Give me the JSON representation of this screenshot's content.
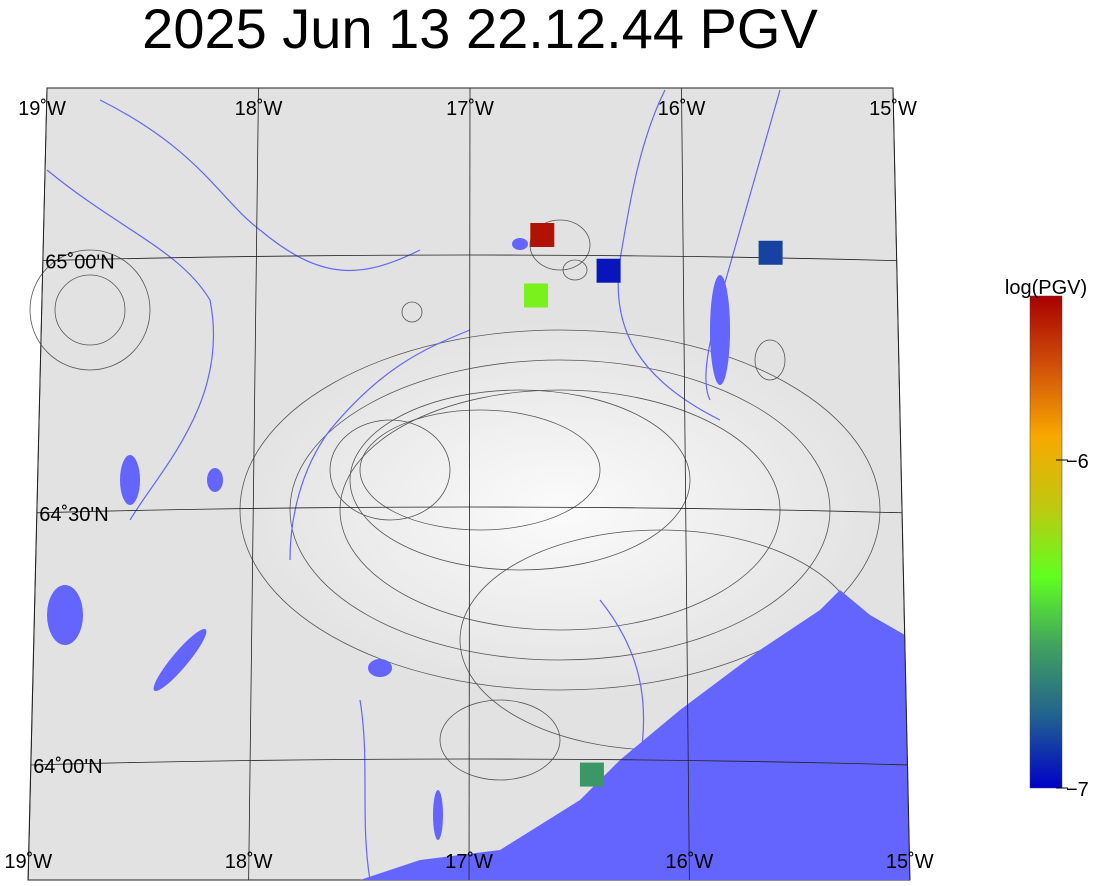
{
  "title": "2025 Jun 13 22.12.44 PGV",
  "map": {
    "lon_range": [
      -19,
      -15
    ],
    "lat_range": [
      63.85,
      65.35
    ],
    "lon_labels": [
      {
        "lon": -19,
        "text": "19˚W"
      },
      {
        "lon": -18,
        "text": "18˚W"
      },
      {
        "lon": -17,
        "text": "17˚W"
      },
      {
        "lon": -16,
        "text": "16˚W"
      },
      {
        "lon": -15,
        "text": "15˚W"
      }
    ],
    "lat_labels": [
      {
        "lat": 65.0,
        "text": "65˚00'N"
      },
      {
        "lat": 64.5,
        "text": "64˚30'N"
      },
      {
        "lat": 64.0,
        "text": "64˚00'N"
      }
    ],
    "colors": {
      "land": "#e4e4e4",
      "water": "#6464ff",
      "contour": "#444444",
      "grid": "#222222"
    }
  },
  "stations": [
    {
      "lon": -16.66,
      "lat": 65.04,
      "log_pgv": -5.55
    },
    {
      "lon": -16.35,
      "lat": 64.97,
      "log_pgv": -6.95
    },
    {
      "lon": -16.69,
      "lat": 64.92,
      "log_pgv": -6.3
    },
    {
      "lon": -15.59,
      "lat": 65.01,
      "log_pgv": -6.85
    },
    {
      "lon": -16.44,
      "lat": 63.97,
      "log_pgv": -6.6
    }
  ],
  "colorbar": {
    "label": "log(PGV)",
    "range": [
      -7,
      -5.5
    ],
    "ticks": [
      {
        "value": -6,
        "text": "−6"
      },
      {
        "value": -7,
        "text": "−7"
      }
    ],
    "stops": [
      "#0000c8",
      "#206090",
      "#40a060",
      "#60ff20",
      "#c0c810",
      "#f8a800",
      "#d05008",
      "#a80000"
    ]
  }
}
